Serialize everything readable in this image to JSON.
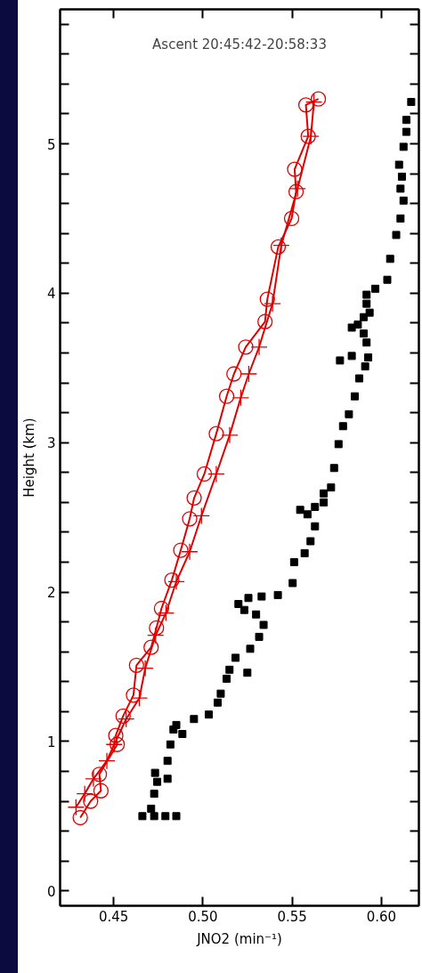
{
  "chart_data": {
    "type": "line",
    "xlabel": "JNO2 (min⁻¹)",
    "ylabel": "Height (km)",
    "annotations": [
      "Ascent 20:45:42-20:58:33"
    ],
    "xlim": [
      0.42,
      0.621
    ],
    "ylim": [
      -0.1,
      5.9
    ],
    "xticks": [
      {
        "value": 0.45,
        "label": "0.45"
      },
      {
        "value": 0.5,
        "label": "0.50"
      },
      {
        "value": 0.55,
        "label": "0.55"
      },
      {
        "value": 0.6,
        "label": "0.60"
      }
    ],
    "yticks": [
      0,
      {
        "value": 0.2,
        "label": null
      },
      {
        "value": 0.4,
        "label": null
      },
      {
        "value": 0.6,
        "label": null
      },
      {
        "value": 0.8,
        "label": null
      },
      1,
      {
        "value": 1.2,
        "label": null
      },
      {
        "value": 1.4,
        "label": null
      },
      {
        "value": 1.6,
        "label": null
      },
      {
        "value": 1.8,
        "label": null
      },
      2,
      {
        "value": 2.2,
        "label": null
      },
      {
        "value": 2.4,
        "label": null
      },
      {
        "value": 2.6,
        "label": null
      },
      {
        "value": 2.8,
        "label": null
      },
      3,
      {
        "value": 3.2,
        "label": null
      },
      {
        "value": 3.4,
        "label": null
      },
      {
        "value": 3.6,
        "label": null
      },
      {
        "value": 3.8,
        "label": null
      },
      4,
      {
        "value": 4.2,
        "label": null
      },
      {
        "value": 4.4,
        "label": null
      },
      {
        "value": 4.6,
        "label": null
      },
      {
        "value": 4.8,
        "label": null
      },
      5,
      {
        "value": 5.2,
        "label": null
      },
      {
        "value": 5.4,
        "label": null
      },
      {
        "value": 5.6,
        "label": null
      },
      {
        "value": 5.8,
        "label": null
      }
    ],
    "grid": false,
    "line_style": "solid",
    "series": [
      {
        "type": "scatter",
        "marker": "square",
        "color": "#000000",
        "x": [
          0.4661,
          0.4727,
          0.479,
          0.4851,
          0.471,
          0.4727,
          0.4744,
          0.4732,
          0.4802,
          0.4802,
          0.4818,
          0.4835,
          0.4885,
          0.4851,
          0.495,
          0.5033,
          0.5083,
          0.51,
          0.5133,
          0.5149,
          0.5249,
          0.5183,
          0.5265,
          0.5315,
          0.534,
          0.5298,
          0.5232,
          0.5199,
          0.5255,
          0.5329,
          0.542,
          0.5503,
          0.5511,
          0.557,
          0.5603,
          0.5628,
          0.5586,
          0.5545,
          0.5628,
          0.5677,
          0.5677,
          0.5718,
          0.5735,
          0.576,
          0.5785,
          0.5818,
          0.5851,
          0.5876,
          0.5909,
          0.5926,
          0.5768,
          0.5834,
          0.5917,
          0.5901,
          0.5868,
          0.5834,
          0.5901,
          0.5934,
          0.5917,
          0.5917,
          0.5966,
          0.6033,
          0.6049,
          0.6083,
          0.6107,
          0.6124,
          0.6107,
          0.6115,
          0.6099,
          0.6124,
          0.614,
          0.614,
          0.6167
        ],
        "values": [
          0.5,
          0.5,
          0.5,
          0.5,
          0.55,
          0.65,
          0.73,
          0.79,
          0.75,
          0.87,
          0.98,
          1.08,
          1.05,
          1.11,
          1.15,
          1.18,
          1.26,
          1.32,
          1.42,
          1.48,
          1.46,
          1.56,
          1.62,
          1.7,
          1.78,
          1.85,
          1.88,
          1.92,
          1.96,
          1.97,
          1.98,
          2.06,
          2.2,
          2.26,
          2.34,
          2.44,
          2.52,
          2.55,
          2.57,
          2.6,
          2.66,
          2.7,
          2.83,
          2.99,
          3.11,
          3.19,
          3.31,
          3.43,
          3.51,
          3.57,
          3.55,
          3.58,
          3.67,
          3.73,
          3.79,
          3.77,
          3.84,
          3.87,
          3.93,
          3.99,
          4.03,
          4.09,
          4.23,
          4.39,
          4.5,
          4.62,
          4.7,
          4.78,
          4.86,
          4.98,
          5.08,
          5.16,
          5.28
        ]
      },
      {
        "marker": "circle",
        "color": "#e00000",
        "x": [
          0.4313,
          0.4371,
          0.4429,
          0.442,
          0.452,
          0.4512,
          0.4553,
          0.4611,
          0.4628,
          0.471,
          0.474,
          0.4768,
          0.4826,
          0.4876,
          0.4926,
          0.4951,
          0.5008,
          0.5075,
          0.5133,
          0.5174,
          0.524,
          0.5348,
          0.5361,
          0.5422,
          0.5497,
          0.5522,
          0.5514,
          0.559,
          0.5577,
          0.5647
        ],
        "values": [
          0.49,
          0.6,
          0.67,
          0.78,
          0.98,
          1.04,
          1.17,
          1.31,
          1.51,
          1.63,
          1.76,
          1.89,
          2.08,
          2.28,
          2.49,
          2.63,
          2.79,
          3.06,
          3.31,
          3.46,
          3.64,
          3.81,
          3.96,
          4.31,
          4.5,
          4.68,
          4.83,
          5.05,
          5.26,
          5.3
        ]
      },
      {
        "marker": "cross",
        "color": "#e00000",
        "x": [
          0.4289,
          0.4338,
          0.4387,
          0.4462,
          0.4503,
          0.457,
          0.4644,
          0.4677,
          0.4735,
          0.4793,
          0.4851,
          0.4926,
          0.4992,
          0.5075,
          0.515,
          0.5212,
          0.5257,
          0.5315,
          0.539,
          0.5439,
          0.553,
          0.5605,
          0.5622
        ],
        "values": [
          0.56,
          0.65,
          0.75,
          0.87,
          0.98,
          1.15,
          1.29,
          1.49,
          1.71,
          1.86,
          2.07,
          2.27,
          2.51,
          2.79,
          3.05,
          3.3,
          3.46,
          3.64,
          3.93,
          4.32,
          4.7,
          5.05,
          5.28
        ]
      }
    ]
  }
}
